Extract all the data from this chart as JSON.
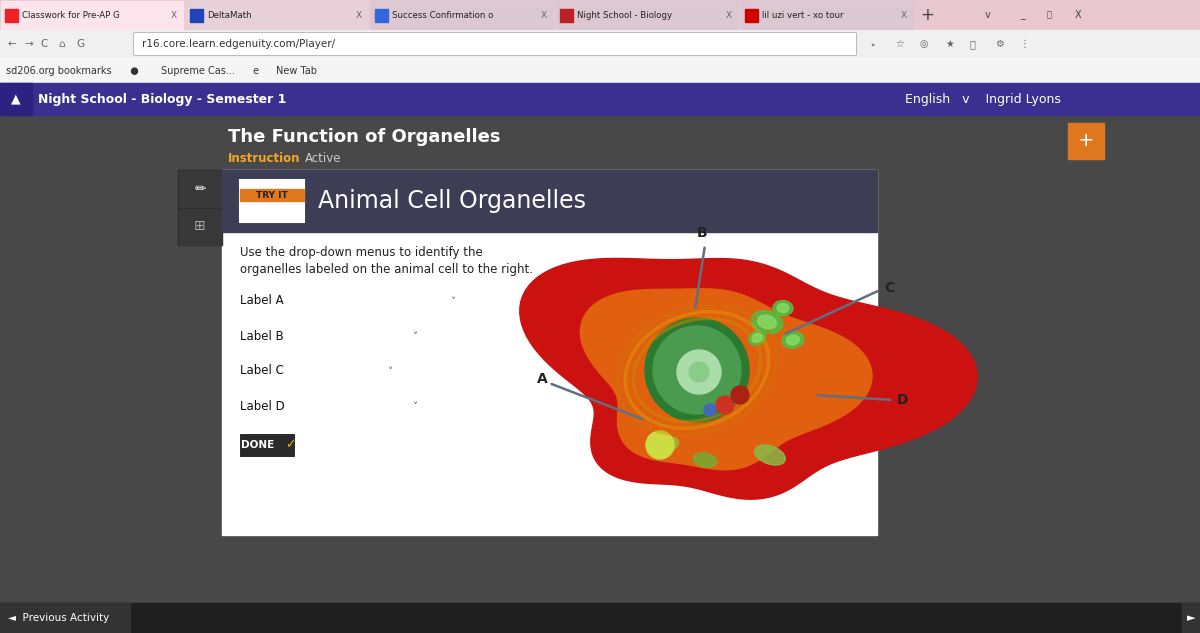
{
  "fig_width": 12.0,
  "fig_height": 6.33,
  "dpi": 100,
  "bg_outer": "#3a3a3a",
  "tab_bar_color": "#f0d0d8",
  "nav_bar_color": "#3b2f90",
  "nav_bar_text": "Night School - Biology - Semester 1",
  "nav_bar_right": "English   v    Ingrid Lyons",
  "content_bg": "#484848",
  "header_bg": "#3d3d55",
  "header_text": "Animal Cell Organelles",
  "page_title": "The Function of Organelles",
  "instruction_label": "Instruction",
  "active_label": "Active",
  "instruction_color": "#f5a623",
  "active_color": "#cccccc",
  "body_text_line1": "Use the drop-down menus to identify the",
  "body_text_line2": "organelles labeled on the animal cell to the right.",
  "labels": [
    "Label A",
    "Label B",
    "Label C",
    "Label D"
  ],
  "done_btn_text": "DONE",
  "bottom_bar_color": "#1e1e1e",
  "bottom_left_btn": "#333333",
  "bottom_right_btn": "#333333",
  "prev_activity_text": "Previous Activity",
  "tab_titles": [
    "Classwork for Pre-AP Geometr",
    "DeltaMath",
    "Success Confirmation of Que",
    "Night School - Biology - Seme",
    "lil uzi vert - xo tour life + p"
  ],
  "url_text": "r16.core.learn.edgenuity.com/Player/",
  "try_it_orange": "#e07820",
  "ann_color": "#607080",
  "cell_outer_color": "#cc1111",
  "cell_mid_color": "#cc2200",
  "cell_inner_color": "#e06010",
  "nucleus_outer": "#2a7a30",
  "nucleus_inner": "#5aaa60",
  "nucleus_center": "#88cc88",
  "plus_btn_color": "#e07820",
  "tab_bar_bg": "#e8c8d0",
  "addr_bar_bg": "#f0f0f0",
  "bookmarks_bg": "#f5f5f5",
  "sidebar_bg": "#2a2a2a",
  "sidebar_icon_bg": "#383838",
  "white_panel": "#ffffff",
  "dropdown_border": "#aaaaaa",
  "done_bg": "#2a2a2a",
  "tryit_border": "#888888"
}
